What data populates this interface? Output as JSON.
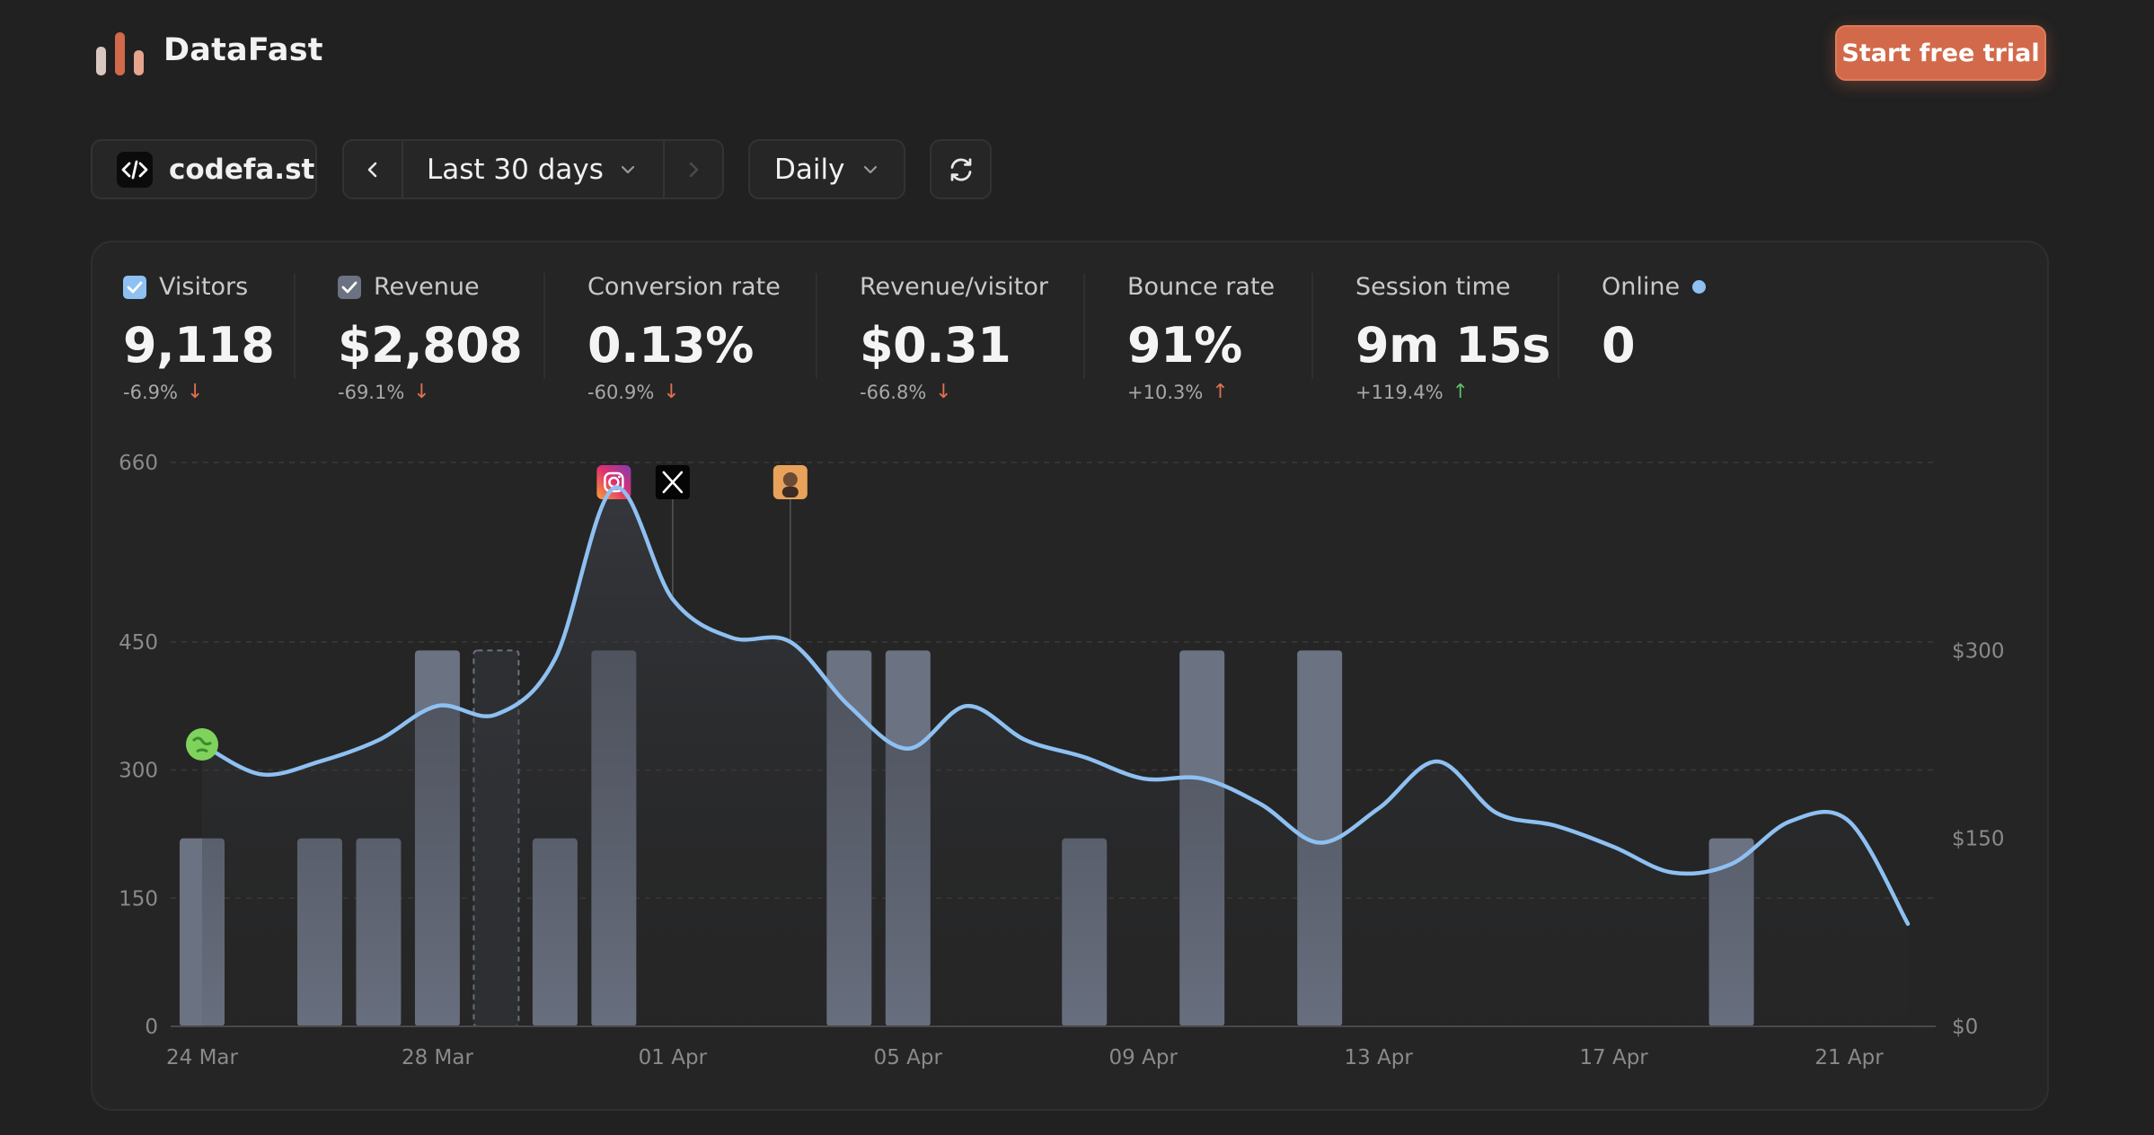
{
  "brand": {
    "name": "DataFast"
  },
  "header": {
    "cta_label": "Start free trial"
  },
  "controls": {
    "site": "codefa.st",
    "range": "Last 30 days",
    "interval": "Daily"
  },
  "metrics": {
    "visitors": {
      "label": "Visitors",
      "value": "9,118",
      "change": "-6.9%"
    },
    "revenue": {
      "label": "Revenue",
      "value": "$2,808",
      "change": "-69.1%"
    },
    "conversion": {
      "label": "Conversion rate",
      "value": "0.13%",
      "change": "-60.9%"
    },
    "rpv": {
      "label": "Revenue/visitor",
      "value": "$0.31",
      "change": "-66.8%"
    },
    "bounce": {
      "label": "Bounce rate",
      "value": "91%",
      "change": "+10.3%"
    },
    "session": {
      "label": "Session time",
      "value": "9m 15s",
      "change": "+119.4%"
    },
    "online": {
      "label": "Online",
      "value": "0"
    }
  },
  "colors": {
    "accent": "#d2694a",
    "visitors_line": "#8ec0f2",
    "revenue_bar": "#6b7282",
    "negative": "#e0704f",
    "positive": "#5dbb63"
  },
  "chart_data": {
    "type": "bar+line",
    "x": [
      "24 Mar",
      "25 Mar",
      "26 Mar",
      "27 Mar",
      "28 Mar",
      "29 Mar",
      "30 Mar",
      "31 Mar",
      "01 Apr",
      "02 Apr",
      "03 Apr",
      "04 Apr",
      "05 Apr",
      "06 Apr",
      "07 Apr",
      "08 Apr",
      "09 Apr",
      "10 Apr",
      "11 Apr",
      "12 Apr",
      "13 Apr",
      "14 Apr",
      "15 Apr",
      "16 Apr",
      "17 Apr",
      "18 Apr",
      "19 Apr",
      "20 Apr",
      "21 Apr",
      "22 Apr"
    ],
    "x_tick_labels": [
      "24 Mar",
      "28 Mar",
      "01 Apr",
      "05 Apr",
      "09 Apr",
      "13 Apr",
      "17 Apr",
      "21 Apr"
    ],
    "series": [
      {
        "name": "Visitors",
        "type": "line",
        "axis": "left",
        "values": [
          330,
          295,
          310,
          335,
          375,
          365,
          430,
          630,
          500,
          455,
          450,
          375,
          325,
          375,
          335,
          315,
          290,
          290,
          260,
          215,
          255,
          310,
          250,
          235,
          210,
          180,
          190,
          240,
          240,
          120
        ]
      },
      {
        "name": "Revenue",
        "type": "bar",
        "axis": "right",
        "values": [
          150,
          0,
          150,
          150,
          300,
          300,
          150,
          300,
          0,
          0,
          0,
          300,
          300,
          0,
          0,
          150,
          0,
          300,
          0,
          300,
          0,
          0,
          0,
          0,
          0,
          0,
          150,
          0,
          0,
          0
        ],
        "pending_index": 5
      }
    ],
    "y_left": {
      "ticks": [
        0,
        150,
        300,
        450,
        660
      ],
      "lim": [
        0,
        660
      ]
    },
    "y_right": {
      "ticks": [
        "$0",
        "$150",
        "$300"
      ],
      "lim": [
        0,
        450
      ]
    },
    "annotations": [
      {
        "x": "31 Mar",
        "icon": "instagram-icon"
      },
      {
        "x": "01 Apr",
        "icon": "x-icon"
      },
      {
        "x": "03 Apr",
        "icon": "avatar-icon"
      }
    ],
    "grid": true
  }
}
